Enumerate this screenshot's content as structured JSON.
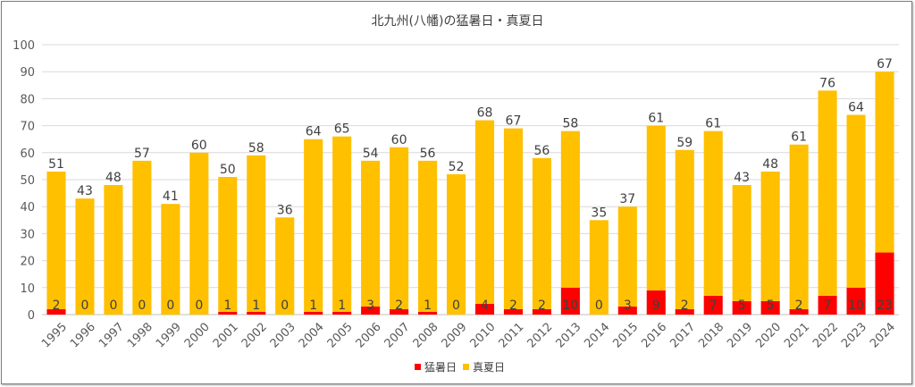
{
  "chart_data": {
    "type": "bar",
    "stacked": true,
    "title": "北九州(八幡)の猛暑日・真夏日",
    "xlabel": "",
    "ylabel": "",
    "ylim": [
      0,
      100
    ],
    "yticks": [
      0,
      10,
      20,
      30,
      40,
      50,
      60,
      70,
      80,
      90,
      100
    ],
    "grid": true,
    "legend_position": "bottom",
    "categories": [
      "1995",
      "1996",
      "1997",
      "1998",
      "1999",
      "2000",
      "2001",
      "2002",
      "2003",
      "2004",
      "2005",
      "2006",
      "2007",
      "2008",
      "2009",
      "2010",
      "2011",
      "2012",
      "2013",
      "2014",
      "2015",
      "2016",
      "2017",
      "2018",
      "2019",
      "2020",
      "2021",
      "2022",
      "2023",
      "2024"
    ],
    "series": [
      {
        "name": "猛暑日",
        "color": "#ff0000",
        "values": [
          2,
          0,
          0,
          0,
          0,
          0,
          1,
          1,
          0,
          1,
          1,
          3,
          2,
          1,
          0,
          4,
          2,
          2,
          10,
          0,
          3,
          9,
          2,
          7,
          5,
          5,
          2,
          7,
          10,
          23
        ]
      },
      {
        "name": "真夏日",
        "color": "#ffc000",
        "values": [
          51,
          43,
          48,
          57,
          41,
          60,
          50,
          58,
          36,
          64,
          65,
          54,
          60,
          56,
          52,
          68,
          67,
          56,
          58,
          35,
          37,
          61,
          59,
          61,
          43,
          48,
          61,
          76,
          64,
          67
        ]
      }
    ]
  }
}
